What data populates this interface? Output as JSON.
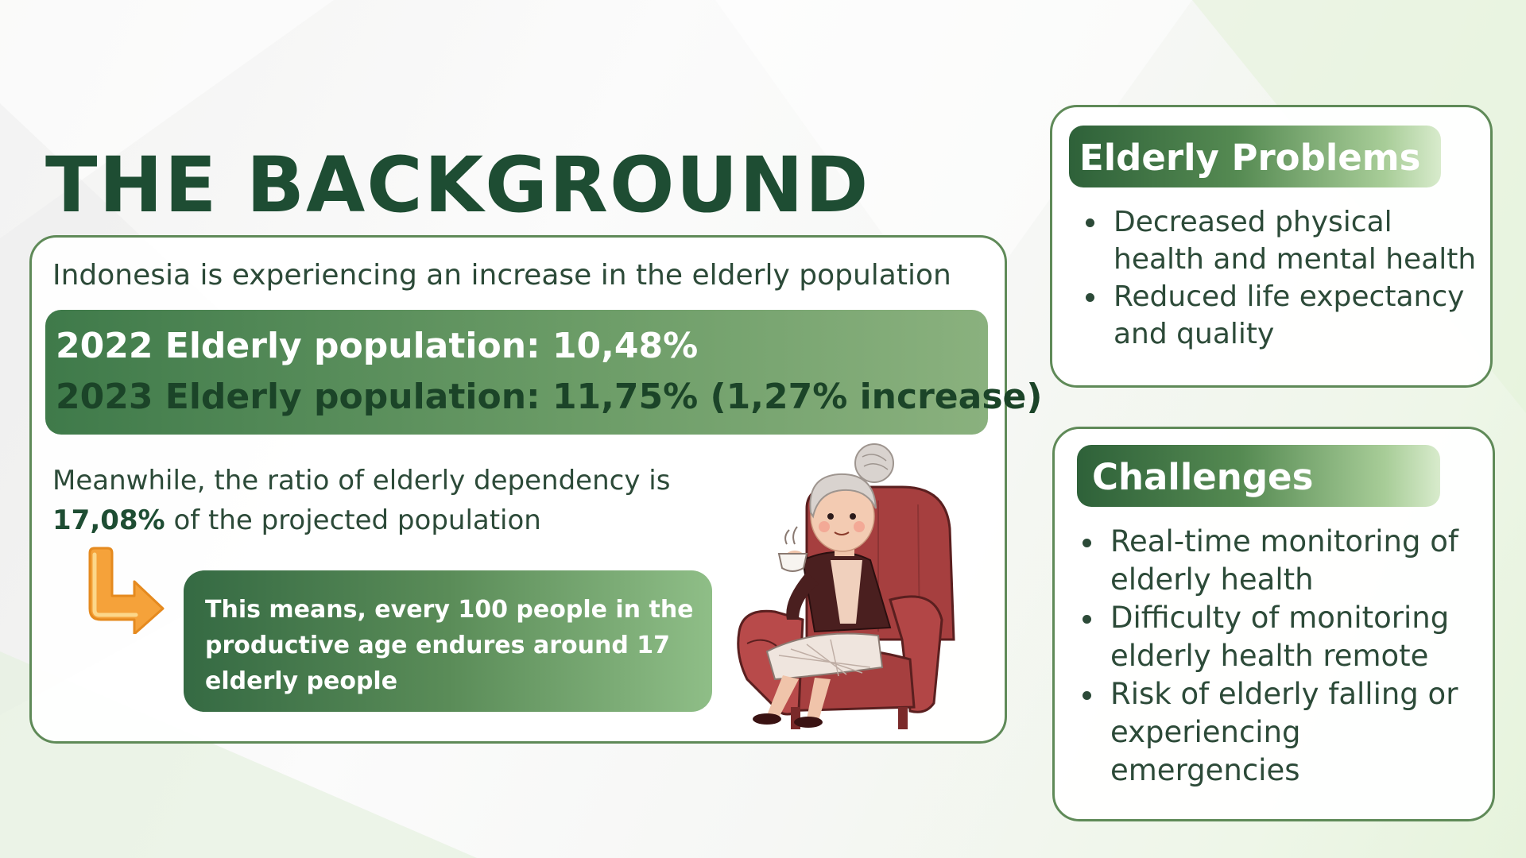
{
  "slide": {
    "title": "THE BACKGROUND"
  },
  "main": {
    "intro": "Indonesia is experiencing an increase in the elderly population",
    "stat_2022": "2022 Elderly population: 10,48%",
    "stat_2023": "2023 Elderly population: 11,75% (1,27% increase)",
    "ratio_prefix": "Meanwhile, the ratio of elderly dependency is",
    "ratio_value": "17,08%",
    "ratio_suffix": "of the projected population",
    "means_text": "This means, every 100 people in the productive age endures around 17 elderly people"
  },
  "elderly_problems": {
    "heading": "Elderly Problems",
    "items": [
      " Decreased physical health and mental health",
      "Reduced life expectancy and quality"
    ]
  },
  "challenges": {
    "heading": "Challenges",
    "items": [
      "Real-time monitoring of elderly health",
      "Difficulty of monitoring elderly health remote",
      "Risk of elderly falling or experiencing emergencies"
    ]
  },
  "icons": {
    "arrow": "down-right-arrow-icon",
    "illustration": "elderly-woman-in-armchair-illustration"
  },
  "colors": {
    "title": "#1e4d33",
    "accent_green": "#5f8a58",
    "text": "#2c4a38",
    "arrow": "#f5a23a",
    "chair": "#a63f3f"
  }
}
